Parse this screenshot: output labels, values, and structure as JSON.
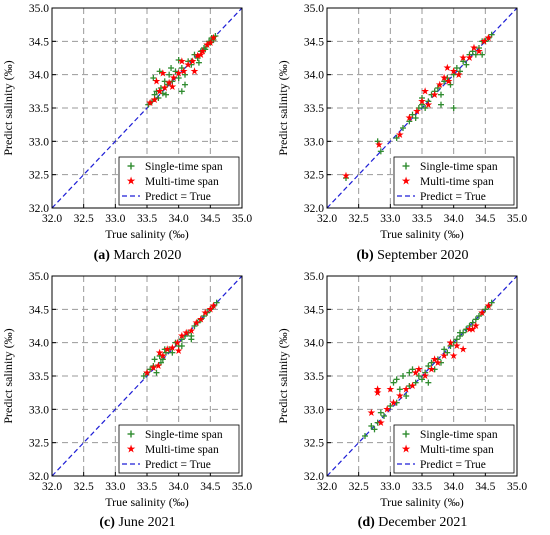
{
  "chart_data": [
    {
      "type": "scatter",
      "caption_tag": "(a)",
      "caption_text": " March 2020",
      "xlabel": "True salinity  (‰)",
      "ylabel": "Predict salinity (‰)",
      "xlim": [
        32.0,
        35.0
      ],
      "ylim": [
        32.0,
        35.0
      ],
      "xticks": [
        "32.0",
        "32.5",
        "33.0",
        "33.5",
        "34.0",
        "34.5",
        "35.0"
      ],
      "yticks": [
        "32.0",
        "32.5",
        "33.0",
        "33.5",
        "34.0",
        "34.5",
        "35.0"
      ],
      "grid": true,
      "legend_position": "bottom-right",
      "series": [
        {
          "name": "Single-time span",
          "marker": "plus",
          "color": "#2e8b2e",
          "x": [
            33.52,
            33.58,
            33.62,
            33.65,
            33.68,
            33.72,
            33.75,
            33.78,
            33.82,
            33.85,
            33.9,
            33.95,
            34.0,
            34.05,
            34.1,
            34.15,
            34.2,
            34.25,
            34.3,
            34.35,
            34.4,
            34.42,
            34.45,
            34.48,
            34.5,
            34.52,
            34.55,
            34.58,
            33.6,
            33.7,
            33.8,
            34.0,
            34.05,
            34.2,
            34.1,
            33.88,
            34.32
          ],
          "y": [
            33.55,
            33.6,
            33.7,
            33.75,
            33.65,
            33.8,
            33.72,
            33.9,
            33.85,
            34.0,
            33.9,
            34.05,
            33.95,
            34.1,
            34.0,
            34.2,
            34.15,
            34.3,
            34.25,
            34.35,
            34.4,
            34.38,
            34.45,
            34.5,
            34.48,
            34.55,
            34.52,
            34.58,
            33.95,
            34.05,
            33.7,
            34.22,
            33.75,
            34.2,
            33.85,
            34.1,
            34.18
          ]
        },
        {
          "name": "Multi-time span",
          "marker": "star",
          "color": "#ff0000",
          "x": [
            33.55,
            33.62,
            33.7,
            33.78,
            33.85,
            33.92,
            34.0,
            34.08,
            34.15,
            34.22,
            34.3,
            34.38,
            34.45,
            34.5,
            34.55,
            33.65,
            33.75,
            33.9,
            34.05,
            34.25,
            34.35
          ],
          "y": [
            33.58,
            33.62,
            33.75,
            33.8,
            33.88,
            33.95,
            34.02,
            34.05,
            34.15,
            34.2,
            34.28,
            34.35,
            34.45,
            34.48,
            34.55,
            33.9,
            34.02,
            33.82,
            34.2,
            34.05,
            34.3
          ]
        }
      ],
      "legend_line_label": "Predict = True"
    },
    {
      "type": "scatter",
      "caption_tag": "(b)",
      "caption_text": " September 2020",
      "xlabel": "True salinity  (‰)",
      "ylabel": "Predict salinity (‰)",
      "xlim": [
        32.0,
        35.0
      ],
      "ylim": [
        32.0,
        35.0
      ],
      "xticks": [
        "32.0",
        "32.5",
        "33.0",
        "33.5",
        "34.0",
        "34.5",
        "35.0"
      ],
      "yticks": [
        "32.0",
        "32.5",
        "33.0",
        "33.5",
        "34.0",
        "34.5",
        "35.0"
      ],
      "grid": true,
      "legend_position": "bottom-right",
      "series": [
        {
          "name": "Single-time span",
          "marker": "plus",
          "color": "#2e8b2e",
          "x": [
            32.3,
            32.8,
            32.85,
            33.1,
            33.2,
            33.3,
            33.35,
            33.4,
            33.45,
            33.5,
            33.55,
            33.6,
            33.65,
            33.7,
            33.75,
            33.8,
            33.85,
            33.9,
            33.95,
            34.0,
            34.05,
            34.1,
            34.15,
            34.2,
            34.25,
            34.3,
            34.35,
            34.4,
            34.45,
            34.5,
            34.55,
            34.6,
            33.5,
            33.8,
            34.0,
            34.45
          ],
          "y": [
            32.45,
            33.0,
            32.85,
            33.05,
            33.2,
            33.3,
            33.4,
            33.35,
            33.5,
            33.55,
            33.5,
            33.6,
            33.7,
            33.75,
            33.8,
            33.7,
            33.9,
            33.95,
            33.85,
            34.0,
            34.1,
            34.05,
            34.2,
            34.15,
            34.3,
            34.35,
            34.3,
            34.4,
            34.5,
            34.5,
            34.55,
            34.6,
            33.65,
            33.55,
            33.5,
            34.3
          ]
        },
        {
          "name": "Multi-time span",
          "marker": "star",
          "color": "#ff0000",
          "x": [
            32.3,
            32.82,
            33.15,
            33.3,
            33.42,
            33.5,
            33.6,
            33.7,
            33.78,
            33.85,
            33.92,
            34.0,
            34.08,
            34.15,
            34.25,
            34.32,
            34.4,
            34.48,
            34.55,
            33.55,
            33.9
          ],
          "y": [
            32.48,
            32.95,
            33.1,
            33.35,
            33.45,
            33.6,
            33.55,
            33.7,
            33.85,
            33.95,
            33.9,
            34.05,
            34.0,
            34.25,
            34.25,
            34.4,
            34.35,
            34.5,
            34.55,
            33.75,
            34.1
          ]
        }
      ],
      "legend_line_label": "Predict = True"
    },
    {
      "type": "scatter",
      "caption_tag": "(c)",
      "caption_text": " June 2021",
      "xlabel": "True salinity  (‰)",
      "ylabel": "Predict salinity (‰)",
      "xlim": [
        32.0,
        35.0
      ],
      "ylim": [
        32.0,
        35.0
      ],
      "xticks": [
        "32.0",
        "32.5",
        "33.0",
        "33.5",
        "34.0",
        "34.5",
        "35.0"
      ],
      "yticks": [
        "32.0",
        "32.5",
        "33.0",
        "33.5",
        "34.0",
        "34.5",
        "35.0"
      ],
      "grid": true,
      "legend_position": "bottom-right",
      "series": [
        {
          "name": "Single-time span",
          "marker": "plus",
          "color": "#2e8b2e",
          "x": [
            33.45,
            33.5,
            33.55,
            33.6,
            33.65,
            33.7,
            33.72,
            33.75,
            33.8,
            33.85,
            33.9,
            33.95,
            34.0,
            34.05,
            34.1,
            34.15,
            34.2,
            34.25,
            34.3,
            34.35,
            34.4,
            34.45,
            34.5,
            34.55,
            34.6,
            33.62,
            33.78,
            34.05,
            34.2
          ],
          "y": [
            33.5,
            33.55,
            33.6,
            33.65,
            33.55,
            33.8,
            33.7,
            33.75,
            33.85,
            33.9,
            33.85,
            34.0,
            33.95,
            34.05,
            34.1,
            34.15,
            34.05,
            34.25,
            34.3,
            34.35,
            34.4,
            34.45,
            34.5,
            34.55,
            34.6,
            33.75,
            33.9,
            33.95,
            34.1
          ]
        },
        {
          "name": "Multi-time span",
          "marker": "star",
          "color": "#ff0000",
          "x": [
            33.5,
            33.6,
            33.68,
            33.75,
            33.82,
            33.9,
            33.98,
            34.05,
            34.12,
            34.2,
            34.28,
            34.35,
            34.42,
            34.5,
            34.55,
            33.7,
            34.0
          ],
          "y": [
            33.55,
            33.62,
            33.65,
            33.8,
            33.9,
            33.92,
            34.0,
            34.1,
            34.15,
            34.18,
            34.3,
            34.35,
            34.45,
            34.5,
            34.55,
            33.85,
            33.88
          ]
        }
      ],
      "legend_line_label": "Predict = True"
    },
    {
      "type": "scatter",
      "caption_tag": "(d)",
      "caption_text": " December 2021",
      "xlabel": "True salinity  (‰)",
      "ylabel": "Predict salinity (‰)",
      "xlim": [
        32.0,
        35.0
      ],
      "ylim": [
        32.0,
        35.0
      ],
      "xticks": [
        "32.0",
        "32.5",
        "33.0",
        "33.5",
        "34.0",
        "34.5",
        "35.0"
      ],
      "yticks": [
        "32.0",
        "32.5",
        "33.0",
        "33.5",
        "34.0",
        "34.5",
        "35.0"
      ],
      "grid": true,
      "legend_position": "bottom-right",
      "series": [
        {
          "name": "Single-time span",
          "marker": "plus",
          "color": "#2e8b2e",
          "x": [
            32.6,
            32.7,
            32.75,
            32.8,
            32.85,
            32.9,
            33.0,
            33.05,
            33.1,
            33.15,
            33.2,
            33.25,
            33.3,
            33.35,
            33.4,
            33.45,
            33.5,
            33.55,
            33.6,
            33.65,
            33.7,
            33.75,
            33.8,
            33.85,
            33.9,
            33.95,
            34.0,
            34.05,
            34.1,
            34.15,
            34.2,
            34.25,
            34.3,
            34.35,
            34.4,
            34.45,
            34.5,
            34.55,
            34.6,
            33.1,
            33.3,
            33.6,
            34.1,
            34.2
          ],
          "y": [
            32.6,
            32.75,
            32.7,
            32.8,
            32.95,
            32.9,
            33.05,
            33.4,
            33.1,
            33.3,
            33.5,
            33.2,
            33.35,
            33.6,
            33.4,
            33.5,
            33.45,
            33.55,
            33.65,
            33.7,
            33.6,
            33.75,
            33.7,
            33.9,
            33.85,
            33.95,
            34.0,
            34.05,
            34.1,
            34.15,
            34.2,
            34.25,
            34.3,
            34.35,
            34.4,
            34.45,
            34.5,
            34.55,
            34.6,
            33.45,
            33.55,
            33.4,
            34.15,
            34.2
          ]
        },
        {
          "name": "Multi-time span",
          "marker": "star",
          "color": "#ff0000",
          "x": [
            32.7,
            32.8,
            32.85,
            32.95,
            33.05,
            33.15,
            33.25,
            33.35,
            33.45,
            33.55,
            33.65,
            33.75,
            33.85,
            33.95,
            34.05,
            34.15,
            34.25,
            34.35,
            34.45,
            34.55,
            32.8,
            33.0,
            33.4,
            33.7,
            34.0,
            34.3
          ],
          "y": [
            32.95,
            33.25,
            32.8,
            33.0,
            33.1,
            33.2,
            33.3,
            33.35,
            33.6,
            33.5,
            33.6,
            33.7,
            33.8,
            34.0,
            33.95,
            33.9,
            34.2,
            34.25,
            34.45,
            34.55,
            33.3,
            33.3,
            33.55,
            33.75,
            33.8,
            34.2
          ]
        }
      ],
      "legend_line_label": "Predict = True"
    }
  ]
}
